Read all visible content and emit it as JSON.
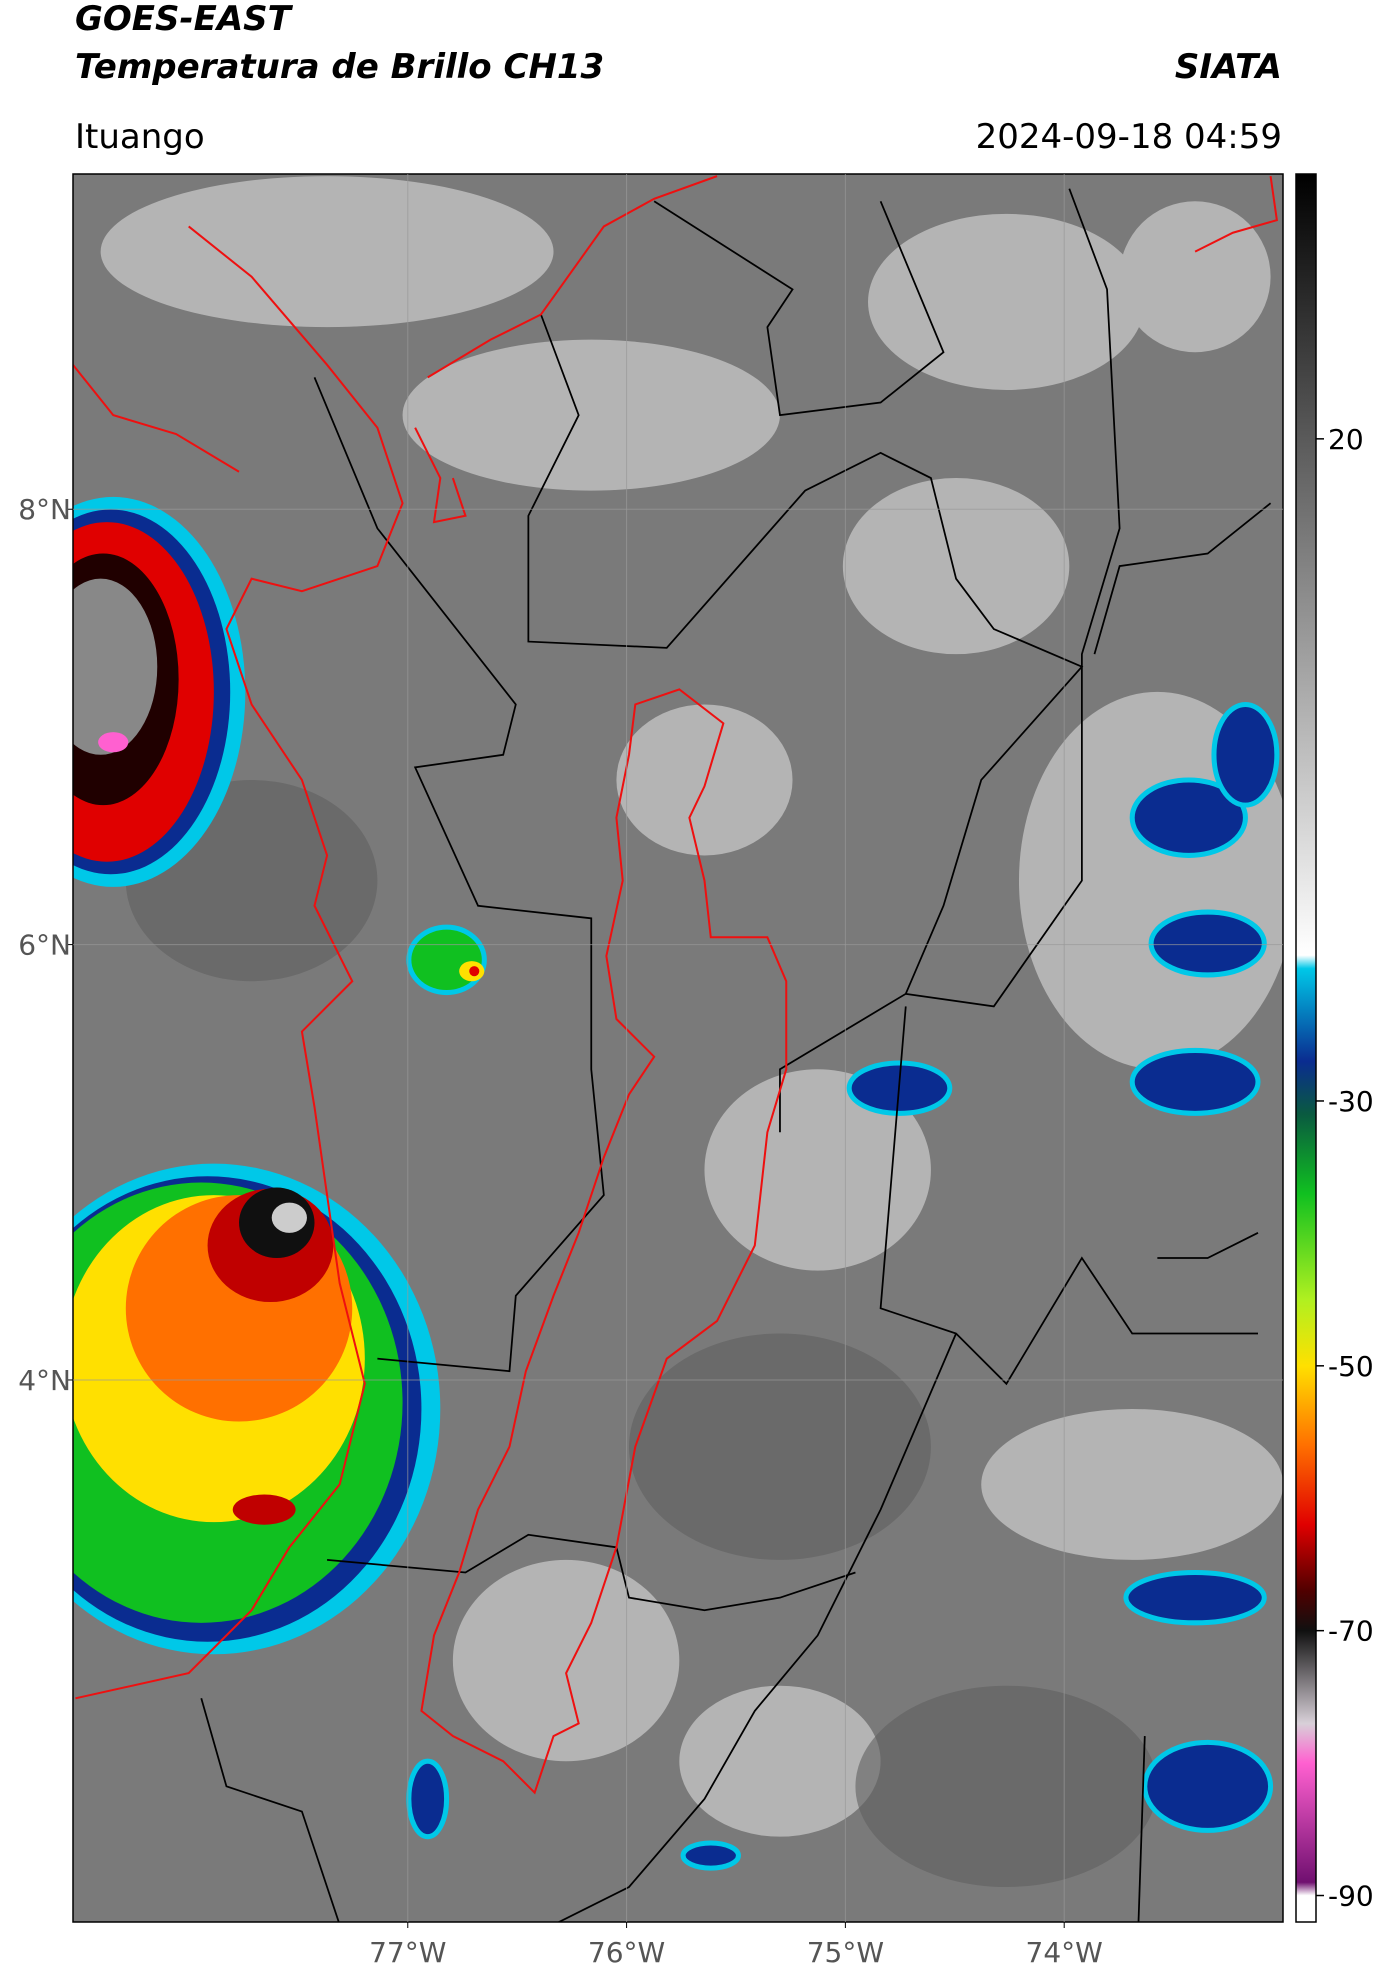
{
  "header": {
    "title": "GOES-EAST",
    "subtitle": "Temperatura de Brillo CH13",
    "brand": "SIATA",
    "location": "Ituango",
    "timestamp": "2024-09-18 04:59"
  },
  "map": {
    "lon_range": [
      -78.53,
      -73.0
    ],
    "lat_range": [
      1.51,
      9.54
    ],
    "lat_ticks": [
      {
        "value": 8,
        "label": "8°N"
      },
      {
        "value": 6,
        "label": "6°N"
      },
      {
        "value": 4,
        "label": "4°N"
      }
    ],
    "lon_ticks": [
      {
        "value": -77,
        "label": "77°W"
      },
      {
        "value": -76,
        "label": "76°W"
      },
      {
        "value": -75,
        "label": "75°W"
      },
      {
        "value": -74,
        "label": "74°W"
      }
    ],
    "grid": true
  },
  "colorbar": {
    "range": [
      -92,
      40
    ],
    "ticks": [
      20,
      -30,
      -50,
      -70,
      -90
    ],
    "stops": [
      [
        40,
        "#000000"
      ],
      [
        20,
        "#5a5a5a"
      ],
      [
        -19,
        "#ffffff"
      ],
      [
        -20,
        "#00c8e8"
      ],
      [
        -27,
        "#0a2c90"
      ],
      [
        -31,
        "#0a5a40"
      ],
      [
        -37,
        "#10c020"
      ],
      [
        -45,
        "#b0f020"
      ],
      [
        -50,
        "#ffe000"
      ],
      [
        -56,
        "#ff7000"
      ],
      [
        -62,
        "#e00000"
      ],
      [
        -67,
        "#500000"
      ],
      [
        -70,
        "#101010"
      ],
      [
        -77,
        "#d8d0d8"
      ],
      [
        -80,
        "#ff60d0"
      ],
      [
        -89,
        "#701070"
      ],
      [
        -90,
        "#ffffff"
      ]
    ]
  }
}
